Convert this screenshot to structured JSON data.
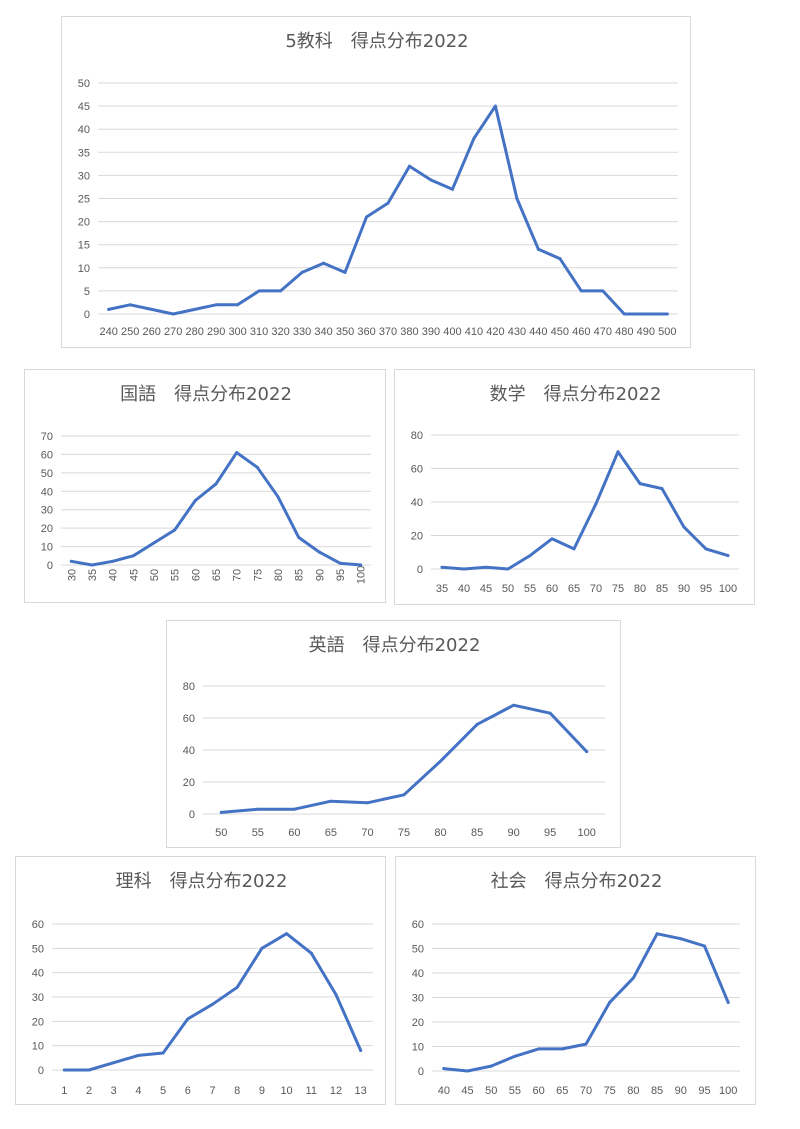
{
  "colors": {
    "series": "#4472c4",
    "grid": "#d9d9d9",
    "text": "#595959"
  },
  "chart_data": [
    {
      "id": "total",
      "type": "line",
      "title": "5教科　得点分布2022",
      "xlabel": "",
      "ylabel": "",
      "ylim": [
        0,
        50
      ],
      "ytick_step": 5,
      "grid": true,
      "legend": "none",
      "categories": [
        "240",
        "250",
        "260",
        "270",
        "280",
        "290",
        "300",
        "310",
        "320",
        "330",
        "340",
        "350",
        "360",
        "370",
        "380",
        "390",
        "400",
        "410",
        "420",
        "430",
        "440",
        "450",
        "460",
        "470",
        "480",
        "490",
        "500"
      ],
      "values": [
        1,
        2,
        1,
        0,
        1,
        2,
        2,
        5,
        5,
        9,
        11,
        9,
        21,
        24,
        32,
        29,
        27,
        38,
        45,
        25,
        14,
        12,
        5,
        5,
        0,
        0,
        0
      ]
    },
    {
      "id": "japanese",
      "type": "line",
      "title": "国語　得点分布2022",
      "xlabel": "",
      "ylabel": "",
      "ylim": [
        0,
        70
      ],
      "ytick_step": 10,
      "grid": true,
      "legend": "none",
      "categories": [
        "30",
        "35",
        "40",
        "45",
        "50",
        "55",
        "60",
        "65",
        "70",
        "75",
        "80",
        "85",
        "90",
        "95",
        "100"
      ],
      "values": [
        2,
        0,
        2,
        5,
        12,
        19,
        35,
        44,
        61,
        53,
        37,
        15,
        7,
        1,
        0
      ]
    },
    {
      "id": "math",
      "type": "line",
      "title": "数学　得点分布2022",
      "xlabel": "",
      "ylabel": "",
      "ylim": [
        0,
        80
      ],
      "ytick_step": 20,
      "grid": true,
      "legend": "none",
      "categories": [
        "35",
        "40",
        "45",
        "50",
        "55",
        "60",
        "65",
        "70",
        "75",
        "80",
        "85",
        "90",
        "95",
        "100"
      ],
      "values": [
        1,
        0,
        1,
        0,
        8,
        18,
        12,
        39,
        70,
        51,
        48,
        25,
        12,
        8
      ]
    },
    {
      "id": "english",
      "type": "line",
      "title": "英語　得点分布2022",
      "xlabel": "",
      "ylabel": "",
      "ylim": [
        0,
        80
      ],
      "ytick_step": 20,
      "grid": true,
      "legend": "none",
      "categories": [
        "50",
        "55",
        "60",
        "65",
        "70",
        "75",
        "80",
        "85",
        "90",
        "95",
        "100"
      ],
      "values": [
        1,
        3,
        3,
        8,
        7,
        12,
        33,
        56,
        68,
        63,
        39
      ]
    },
    {
      "id": "science",
      "type": "line",
      "title": "理科　得点分布2022",
      "xlabel": "",
      "ylabel": "",
      "ylim": [
        0,
        60
      ],
      "ytick_step": 10,
      "grid": true,
      "legend": "none",
      "categories": [
        "1",
        "2",
        "3",
        "4",
        "5",
        "6",
        "7",
        "8",
        "9",
        "10",
        "11",
        "12",
        "13"
      ],
      "values": [
        0,
        0,
        3,
        6,
        7,
        21,
        27,
        34,
        50,
        56,
        48,
        31,
        8
      ]
    },
    {
      "id": "social",
      "type": "line",
      "title": "社会　得点分布2022",
      "xlabel": "",
      "ylabel": "",
      "ylim": [
        0,
        60
      ],
      "ytick_step": 10,
      "grid": true,
      "legend": "none",
      "categories": [
        "40",
        "45",
        "50",
        "55",
        "60",
        "65",
        "70",
        "75",
        "80",
        "85",
        "90",
        "95",
        "100"
      ],
      "values": [
        1,
        0,
        2,
        6,
        9,
        9,
        11,
        28,
        38,
        56,
        54,
        51,
        28
      ]
    }
  ]
}
